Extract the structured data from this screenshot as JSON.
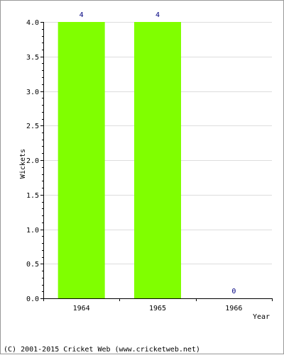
{
  "chart_data": {
    "type": "bar",
    "categories": [
      "1964",
      "1965",
      "1966"
    ],
    "values": [
      4,
      4,
      0
    ],
    "data_labels": [
      "4",
      "4",
      "0"
    ],
    "title": "",
    "xlabel": "Year",
    "ylabel": "Wickets",
    "ylim": [
      0,
      4
    ],
    "yticks": [
      "0.0",
      "0.5",
      "1.0",
      "1.5",
      "2.0",
      "2.5",
      "3.0",
      "3.5",
      "4.0"
    ],
    "grid": true,
    "legend": "none",
    "bar_color": "#80ff00",
    "data_label_color": "#000080",
    "grid_color": "#dddddd"
  },
  "footer": {
    "copyright": "(C) 2001-2015 Cricket Web (www.cricketweb.net)"
  }
}
